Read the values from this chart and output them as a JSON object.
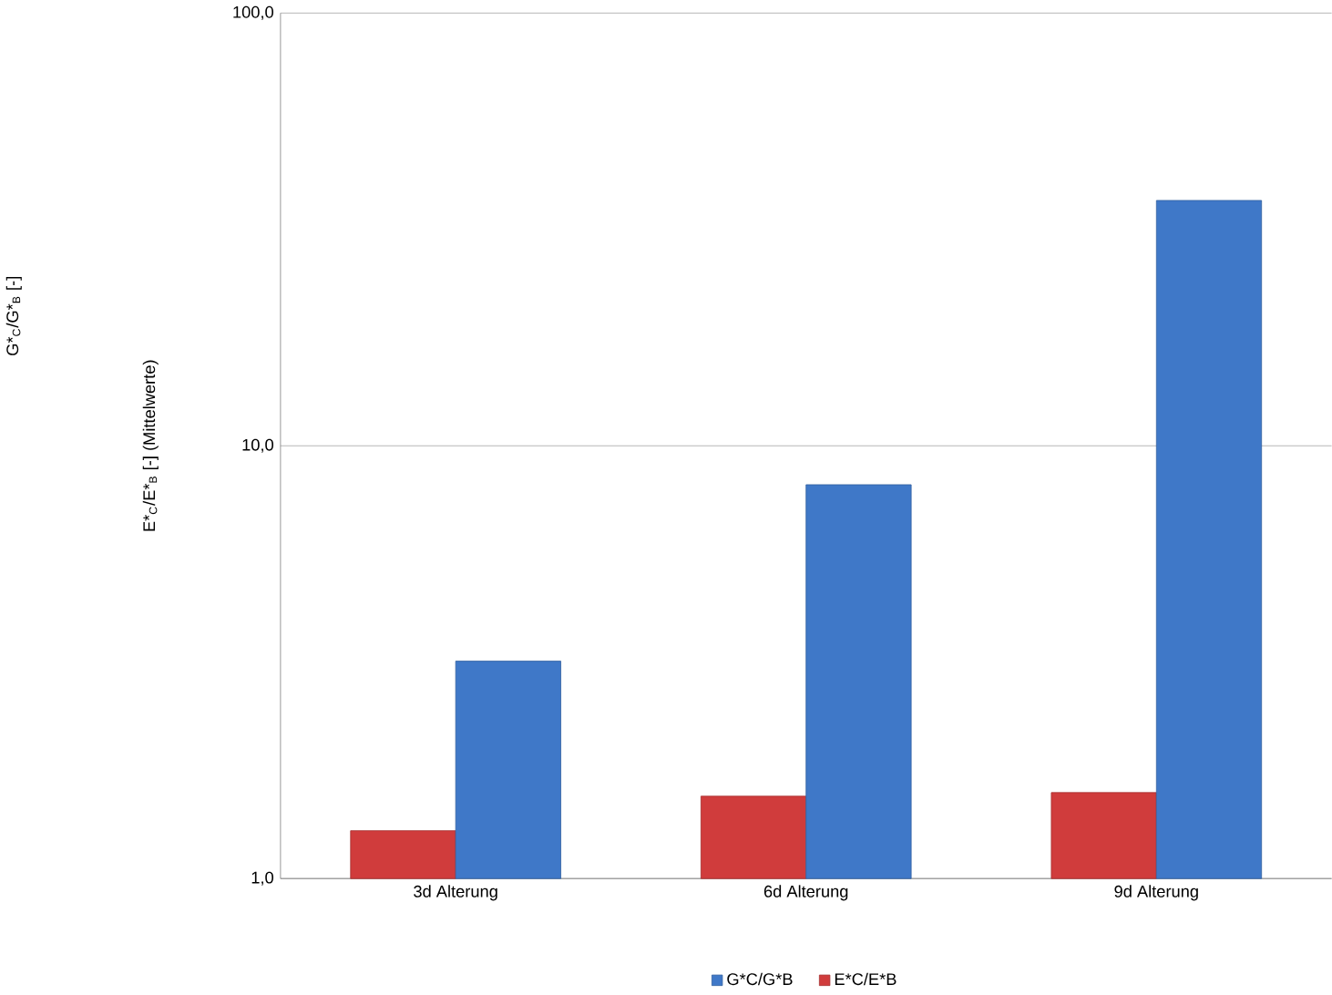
{
  "chart_data": {
    "type": "bar",
    "ylabel": "E*$_{C}$/E*$_{B}$ [-]  (Mittelwerte)",
    "annotations": [
      "G*$_{C}$/G*$_{B}$ [-]"
    ],
    "categories": [
      "3d Alterung",
      "6d Alterung",
      "9d Alterung"
    ],
    "series": [
      {
        "name": "E*C/E*B",
        "color": "#d03c3c",
        "values": [
          1.29,
          1.55,
          1.58
        ]
      },
      {
        "name": "G*C/G*B",
        "color": "#3f78c8",
        "values": [
          3.18,
          8.13,
          36.9
        ]
      }
    ],
    "log": "y",
    "ylim": [
      1,
      100
    ],
    "yticks": [
      {
        "value": 1,
        "label": "1,0"
      },
      {
        "value": 10,
        "label": "10,0"
      },
      {
        "value": 100,
        "label": "100,0"
      }
    ],
    "grid": "y",
    "legend": "bottom"
  }
}
